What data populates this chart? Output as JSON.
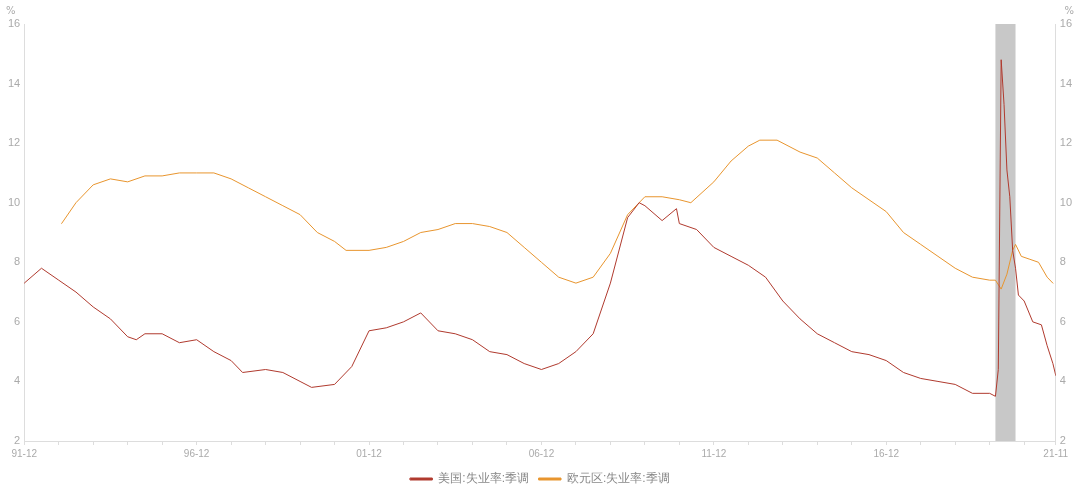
{
  "chart_data": {
    "type": "line",
    "ylabel": "%",
    "y2label": "%",
    "xlim": [
      "1991-12",
      "2021-11"
    ],
    "xticks": [
      {
        "value": "1991-12",
        "label": "91-12"
      },
      {
        "value": "1992-12",
        "label": null
      },
      {
        "value": "1993-12",
        "label": null
      },
      {
        "value": "1994-12",
        "label": null
      },
      {
        "value": "1995-12",
        "label": null
      },
      {
        "value": "1996-12",
        "label": "96-12"
      },
      {
        "value": "1997-12",
        "label": null
      },
      {
        "value": "1998-12",
        "label": null
      },
      {
        "value": "1999-12",
        "label": null
      },
      {
        "value": "2000-12",
        "label": null
      },
      {
        "value": "2001-12",
        "label": "01-12"
      },
      {
        "value": "2002-12",
        "label": null
      },
      {
        "value": "2003-12",
        "label": null
      },
      {
        "value": "2004-12",
        "label": null
      },
      {
        "value": "2005-12",
        "label": null
      },
      {
        "value": "2006-12",
        "label": "06-12"
      },
      {
        "value": "2007-12",
        "label": null
      },
      {
        "value": "2008-12",
        "label": null
      },
      {
        "value": "2009-12",
        "label": null
      },
      {
        "value": "2010-12",
        "label": null
      },
      {
        "value": "2011-12",
        "label": "11-12"
      },
      {
        "value": "2012-12",
        "label": null
      },
      {
        "value": "2013-12",
        "label": null
      },
      {
        "value": "2014-12",
        "label": null
      },
      {
        "value": "2015-12",
        "label": null
      },
      {
        "value": "2016-12",
        "label": "16-12"
      },
      {
        "value": "2017-12",
        "label": null
      },
      {
        "value": "2018-12",
        "label": null
      },
      {
        "value": "2019-12",
        "label": null
      },
      {
        "value": "2020-12",
        "label": null
      },
      {
        "value": "2021-11",
        "label": "21-11"
      }
    ],
    "ylim": [
      2,
      16
    ],
    "yticks": [
      2,
      4,
      6,
      8,
      10,
      12,
      14,
      16
    ],
    "y2lim": [
      2,
      16
    ],
    "y2ticks": [
      2,
      4,
      6,
      8,
      10,
      12,
      14,
      16
    ],
    "grid": false,
    "legend": "bottom",
    "marker": "none",
    "line_style": "solid",
    "bands": [
      {
        "axis": "x",
        "from": "2020-02",
        "to": "2020-09",
        "color": "#c8c8c8"
      }
    ],
    "series": [
      {
        "name": "美国:失业率:季调",
        "color": "#b03a2e",
        "x": [
          "1991-12",
          "1992-06",
          "1992-12",
          "1993-06",
          "1993-12",
          "1994-06",
          "1994-12",
          "1995-03",
          "1995-06",
          "1995-12",
          "1996-06",
          "1996-12",
          "1997-06",
          "1997-12",
          "1998-04",
          "1998-12",
          "1999-06",
          "1999-12",
          "2000-04",
          "2000-12",
          "2001-06",
          "2001-12",
          "2002-06",
          "2002-12",
          "2003-06",
          "2003-12",
          "2004-06",
          "2004-12",
          "2005-06",
          "2005-12",
          "2006-06",
          "2006-12",
          "2007-06",
          "2007-12",
          "2008-06",
          "2008-12",
          "2009-06",
          "2009-10",
          "2009-12",
          "2010-06",
          "2010-11",
          "2010-12",
          "2011-06",
          "2011-12",
          "2012-06",
          "2012-12",
          "2013-06",
          "2013-12",
          "2014-06",
          "2014-12",
          "2015-06",
          "2015-12",
          "2016-06",
          "2016-12",
          "2017-06",
          "2017-12",
          "2018-06",
          "2018-12",
          "2019-06",
          "2019-12",
          "2020-02",
          "2020-03",
          "2020-04",
          "2020-05",
          "2020-06",
          "2020-07",
          "2020-08",
          "2020-09",
          "2020-10",
          "2020-12",
          "2021-03",
          "2021-06",
          "2021-08",
          "2021-10",
          "2021-11"
        ],
        "values": [
          7.3,
          7.8,
          7.4,
          7.0,
          6.5,
          6.1,
          5.5,
          5.4,
          5.6,
          5.6,
          5.3,
          5.4,
          5.0,
          4.7,
          4.3,
          4.4,
          4.3,
          4.0,
          3.8,
          3.9,
          4.5,
          5.7,
          5.8,
          6.0,
          6.3,
          5.7,
          5.6,
          5.4,
          5.0,
          4.9,
          4.6,
          4.4,
          4.6,
          5.0,
          5.6,
          7.3,
          9.5,
          10.0,
          9.9,
          9.4,
          9.8,
          9.3,
          9.1,
          8.5,
          8.2,
          7.9,
          7.5,
          6.7,
          6.1,
          5.6,
          5.3,
          5.0,
          4.9,
          4.7,
          4.3,
          4.1,
          4.0,
          3.9,
          3.6,
          3.6,
          3.5,
          4.4,
          14.8,
          13.3,
          11.1,
          10.2,
          8.4,
          7.8,
          6.9,
          6.7,
          6.0,
          5.9,
          5.2,
          4.6,
          4.2
        ]
      },
      {
        "name": "欧元区:失业率:季调",
        "color": "#e8952e",
        "x": [
          "1993-01",
          "1993-06",
          "1993-12",
          "1994-06",
          "1994-12",
          "1995-06",
          "1995-12",
          "1996-06",
          "1996-12",
          "1997-06",
          "1997-12",
          "1998-06",
          "1998-12",
          "1999-06",
          "1999-12",
          "2000-06",
          "2000-12",
          "2001-04",
          "2001-12",
          "2002-06",
          "2002-12",
          "2003-06",
          "2003-12",
          "2004-06",
          "2004-12",
          "2005-06",
          "2005-12",
          "2006-06",
          "2006-12",
          "2007-06",
          "2007-12",
          "2008-06",
          "2008-12",
          "2009-06",
          "2009-12",
          "2010-06",
          "2010-12",
          "2011-04",
          "2011-12",
          "2012-06",
          "2012-12",
          "2013-04",
          "2013-10",
          "2014-06",
          "2014-12",
          "2015-06",
          "2015-12",
          "2016-06",
          "2016-12",
          "2017-06",
          "2017-12",
          "2018-06",
          "2018-12",
          "2019-06",
          "2019-12",
          "2020-02",
          "2020-04",
          "2020-06",
          "2020-08",
          "2020-09",
          "2020-11",
          "2021-02",
          "2021-05",
          "2021-08",
          "2021-10"
        ],
        "values": [
          9.3,
          10.0,
          10.6,
          10.8,
          10.7,
          10.9,
          10.9,
          11.0,
          11.0,
          11.0,
          10.8,
          10.5,
          10.2,
          9.9,
          9.6,
          9.0,
          8.7,
          8.4,
          8.4,
          8.5,
          8.7,
          9.0,
          9.1,
          9.3,
          9.3,
          9.2,
          9.0,
          8.5,
          8.0,
          7.5,
          7.3,
          7.5,
          8.3,
          9.6,
          10.2,
          10.2,
          10.1,
          10.0,
          10.7,
          11.4,
          11.9,
          12.1,
          12.1,
          11.7,
          11.5,
          11.0,
          10.5,
          10.1,
          9.7,
          9.0,
          8.6,
          8.2,
          7.8,
          7.5,
          7.4,
          7.4,
          7.1,
          7.6,
          8.4,
          8.6,
          8.2,
          8.1,
          8.0,
          7.5,
          7.3
        ]
      }
    ]
  }
}
